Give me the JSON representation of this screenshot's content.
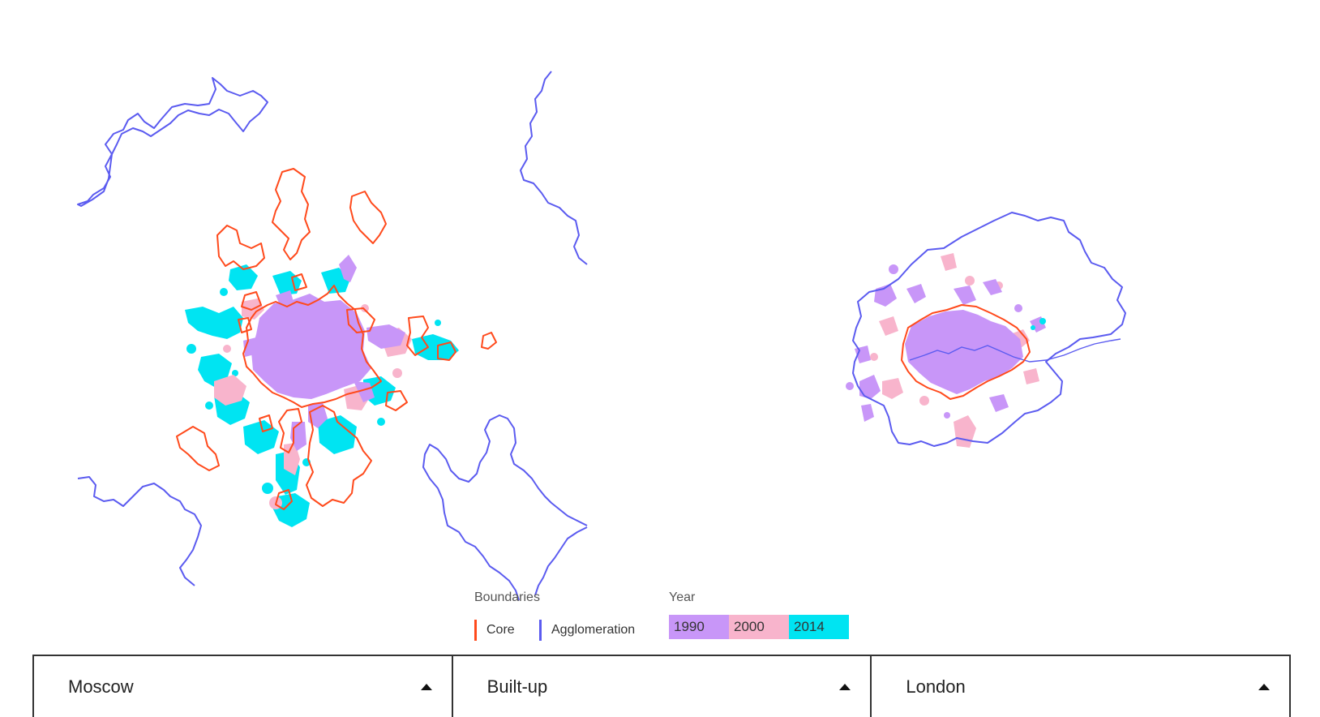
{
  "colors": {
    "core": "#ff4a1c",
    "agglomeration": "#5b5bf0",
    "y1990": "#c896f8",
    "y2000": "#f8b4cc",
    "y2014": "#00e4f2"
  },
  "legend": {
    "boundaries_heading": "Boundaries",
    "core_label": "Core",
    "agglomeration_label": "Agglomeration",
    "year_heading": "Year",
    "years": [
      "1990",
      "2000",
      "2014"
    ]
  },
  "maps": [
    {
      "city": "Moscow"
    },
    {
      "city": "London"
    }
  ],
  "selectors": {
    "left_city": "Moscow",
    "metric": "Built-up",
    "right_city": "London"
  }
}
